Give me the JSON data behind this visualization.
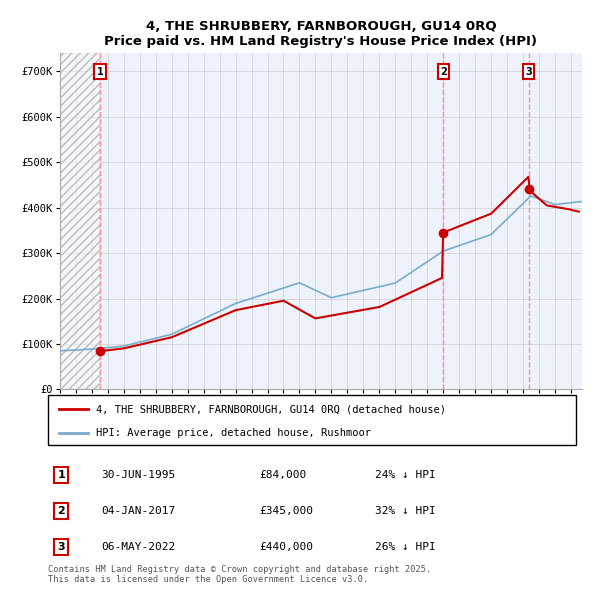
{
  "title": "4, THE SHRUBBERY, FARNBOROUGH, GU14 0RQ",
  "subtitle": "Price paid vs. HM Land Registry's House Price Index (HPI)",
  "ylabel_ticks": [
    "£0",
    "£100K",
    "£200K",
    "£300K",
    "£400K",
    "£500K",
    "£600K",
    "£700K"
  ],
  "ytick_values": [
    0,
    100000,
    200000,
    300000,
    400000,
    500000,
    600000,
    700000
  ],
  "ylim": [
    0,
    740000
  ],
  "xlim_start": 1993.0,
  "xlim_end": 2025.7,
  "purchases": [
    {
      "label": "1",
      "date_num": 1995.5,
      "price": 84000,
      "info": "30-JUN-1995",
      "price_str": "£84,000",
      "hpi_str": "24% ↓ HPI"
    },
    {
      "label": "2",
      "date_num": 2017.02,
      "price": 345000,
      "info": "04-JAN-2017",
      "price_str": "£345,000",
      "hpi_str": "32% ↓ HPI"
    },
    {
      "label": "3",
      "date_num": 2022.35,
      "price": 440000,
      "info": "06-MAY-2022",
      "price_str": "£440,000",
      "hpi_str": "26% ↓ HPI"
    }
  ],
  "legend_property_label": "4, THE SHRUBBERY, FARNBOROUGH, GU14 0RQ (detached house)",
  "legend_hpi_label": "HPI: Average price, detached house, Rushmoor",
  "footnote_line1": "Contains HM Land Registry data © Crown copyright and database right 2025.",
  "footnote_line2": "This data is licensed under the Open Government Licence v3.0.",
  "property_line_color": "#cc0000",
  "hpi_line_color": "#7aabcc",
  "dashed_line_color": "#ff8888",
  "marker_color": "#cc0000",
  "bg_color": "#ffffff",
  "plot_bg_color": "#eef2fa"
}
